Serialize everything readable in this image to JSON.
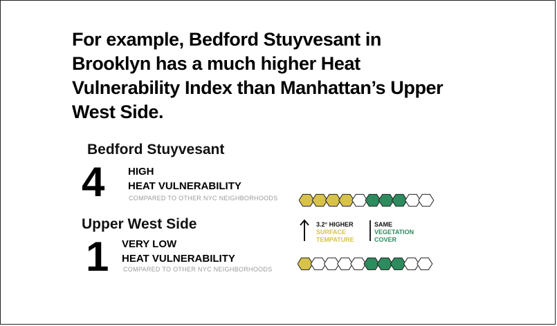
{
  "headline": [
    "For example, Bedford Stuyvesant in",
    "Brooklyn has a much higher Heat",
    "Vulnerability Index than Manhattan’s Upper",
    "West Side."
  ],
  "neighborhoods": [
    {
      "name": "Bedford Stuyvesant",
      "score": "4",
      "level_line1": "HIGH",
      "level_line2": "HEAT VULNERABILITY",
      "compare": "COMPARED TO OTHER NYC NEIGHBORHOODS",
      "hexagons": [
        "yellow",
        "yellow",
        "yellow",
        "yellow",
        "white",
        "green",
        "green",
        "green",
        "white",
        "white"
      ]
    },
    {
      "name": "Upper West Side",
      "score": "1",
      "level_line1": "VERY LOW",
      "level_line2": "HEAT VULNERABILITY",
      "compare": "COMPARED TO OTHER NYC NEIGHBORHOODS",
      "hexagons": [
        "yellow",
        "white",
        "white",
        "white",
        "white",
        "green",
        "green",
        "green",
        "white",
        "white"
      ]
    }
  ],
  "legend": {
    "surface": {
      "head": "3.2° HIGHER",
      "line1": "SURFACE",
      "line2": "TEMPATURE"
    },
    "vegetation": {
      "head": "SAME",
      "line1": "VEGETATION",
      "line2": "COVER"
    }
  },
  "colors": {
    "yellow": "#d8c24b",
    "green": "#2e8b5e",
    "white": "#ffffff"
  }
}
